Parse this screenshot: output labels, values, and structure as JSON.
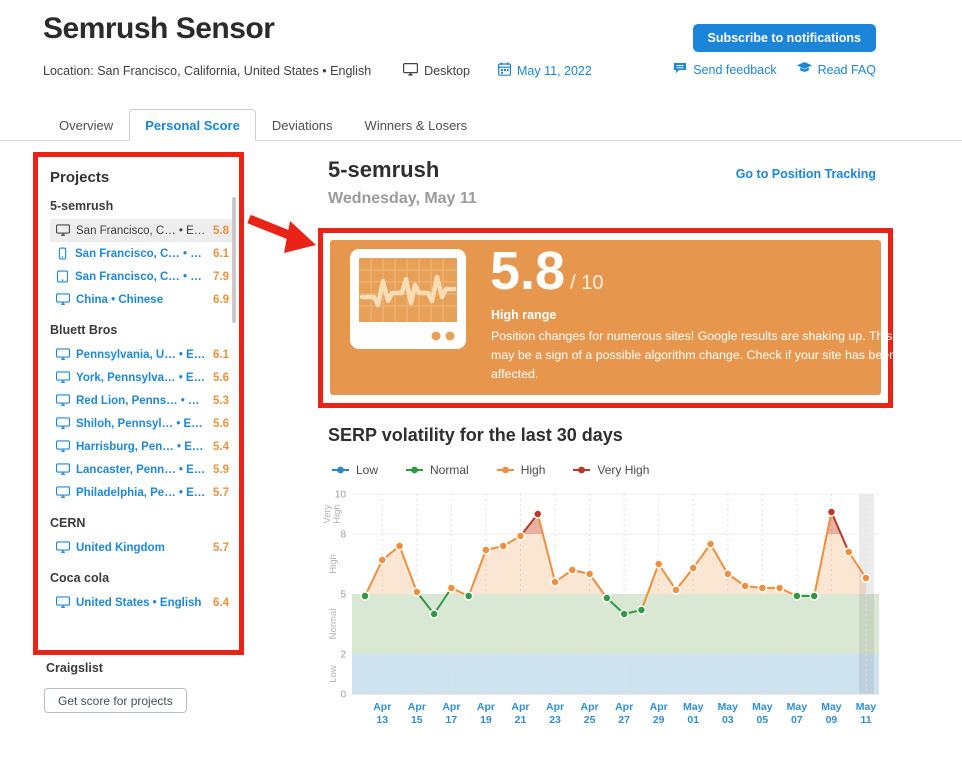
{
  "header": {
    "title": "Semrush Sensor",
    "location": "Location: San Francisco, California, United States • English",
    "device": "Desktop",
    "date": "May 11, 2022",
    "subscribe_button": "Subscribe to notifications",
    "send_feedback": "Send feedback",
    "read_faq": "Read FAQ"
  },
  "tabs": {
    "items": [
      {
        "label": "Overview",
        "active": false
      },
      {
        "label": "Personal Score",
        "active": true
      },
      {
        "label": "Deviations",
        "active": false
      },
      {
        "label": "Winners & Losers",
        "active": false
      }
    ]
  },
  "sidebar": {
    "title": "Projects",
    "groups": [
      {
        "name": "5-semrush",
        "items": [
          {
            "device": "desktop",
            "label": "San Francisco, C… • English",
            "score": "5.8",
            "selected": true
          },
          {
            "device": "mobile",
            "label": "San Francisco, C… • English",
            "score": "6.1",
            "selected": false
          },
          {
            "device": "tablet",
            "label": "San Francisco, C… • English",
            "score": "7.9",
            "selected": false
          },
          {
            "device": "desktop",
            "label": "China • Chinese",
            "score": "6.9",
            "selected": false
          }
        ]
      },
      {
        "name": "Bluett Bros",
        "items": [
          {
            "device": "desktop",
            "label": "Pennsylvania, U… • English",
            "score": "6.1",
            "selected": false
          },
          {
            "device": "desktop",
            "label": "York, Pennsylva… • English",
            "score": "5.6",
            "selected": false
          },
          {
            "device": "desktop",
            "label": "Red Lion, Penns… • English",
            "score": "5.3",
            "selected": false
          },
          {
            "device": "desktop",
            "label": "Shiloh, Pennsyl… • English",
            "score": "5.6",
            "selected": false
          },
          {
            "device": "desktop",
            "label": "Harrisburg, Pen… • English",
            "score": "5.4",
            "selected": false
          },
          {
            "device": "desktop",
            "label": "Lancaster, Penn… • English",
            "score": "5.9",
            "selected": false
          },
          {
            "device": "desktop",
            "label": "Philadelphia, Pe… • English",
            "score": "5.7",
            "selected": false
          }
        ]
      },
      {
        "name": "CERN",
        "items": [
          {
            "device": "desktop",
            "label": "United Kingdom",
            "score": "5.7",
            "selected": false
          }
        ]
      },
      {
        "name": "Coca cola",
        "items": [
          {
            "device": "desktop",
            "label": "United States • English",
            "score": "6.4",
            "selected": false
          }
        ]
      },
      {
        "name": "Craigslist",
        "items": []
      }
    ],
    "button": "Get score for projects"
  },
  "main": {
    "project_title": "5-semrush",
    "tracking_link": "Go to Position Tracking",
    "date_label": "Wednesday, May 11",
    "score_card": {
      "score": "5.8",
      "denominator": "/ 10",
      "range_label": "High range",
      "description": "Position changes for numerous sites! Google results are shaking up. This may be a sign of a possible algorithm change. Check if your site has been affected."
    }
  },
  "chart_data": {
    "type": "line",
    "title": "SERP volatility for the last 30 days",
    "legend": [
      {
        "label": "Low",
        "color": "#2b87c4"
      },
      {
        "label": "Normal",
        "color": "#2e9a41"
      },
      {
        "label": "High",
        "color": "#ef8f3c"
      },
      {
        "label": "Very High",
        "color": "#b93a2b"
      }
    ],
    "x": [
      "Apr 12",
      "Apr 13",
      "Apr 14",
      "Apr 15",
      "Apr 16",
      "Apr 17",
      "Apr 18",
      "Apr 19",
      "Apr 20",
      "Apr 21",
      "Apr 22",
      "Apr 23",
      "Apr 24",
      "Apr 25",
      "Apr 26",
      "Apr 27",
      "Apr 28",
      "Apr 29",
      "Apr 30",
      "May 01",
      "May 02",
      "May 03",
      "May 04",
      "May 05",
      "May 06",
      "May 07",
      "May 08",
      "May 09",
      "May 10",
      "May 11"
    ],
    "values": [
      4.9,
      6.7,
      7.4,
      5.1,
      4.0,
      5.3,
      4.9,
      7.2,
      7.4,
      7.9,
      9.0,
      5.6,
      6.2,
      6.0,
      4.8,
      4.0,
      4.2,
      6.5,
      5.2,
      6.3,
      7.5,
      6.0,
      5.4,
      5.3,
      5.3,
      4.9,
      4.9,
      9.1,
      7.1,
      5.8
    ],
    "ylim": [
      0,
      10
    ],
    "yticks": [
      0,
      2,
      5,
      8,
      10
    ],
    "bands": [
      {
        "label": "Low",
        "range": [
          0,
          2
        ],
        "color": "#cfe2f0"
      },
      {
        "label": "Normal",
        "range": [
          2,
          5
        ],
        "color": "#d8e8d3"
      },
      {
        "label": "High",
        "range": [
          5,
          8
        ],
        "color": "none"
      },
      {
        "label": "Very High",
        "range": [
          8,
          10
        ],
        "color": "none"
      }
    ],
    "x_tick_labels": [
      "Apr 13",
      "Apr 15",
      "Apr 17",
      "Apr 19",
      "Apr 21",
      "Apr 23",
      "Apr 25",
      "Apr 27",
      "Apr 29",
      "May 01",
      "May 03",
      "May 05",
      "May 07",
      "May 09",
      "May 11"
    ],
    "current_day_highlight": "May 11",
    "grid": true,
    "legend_position": "top"
  },
  "annotation": {
    "color": "#ea2316"
  }
}
